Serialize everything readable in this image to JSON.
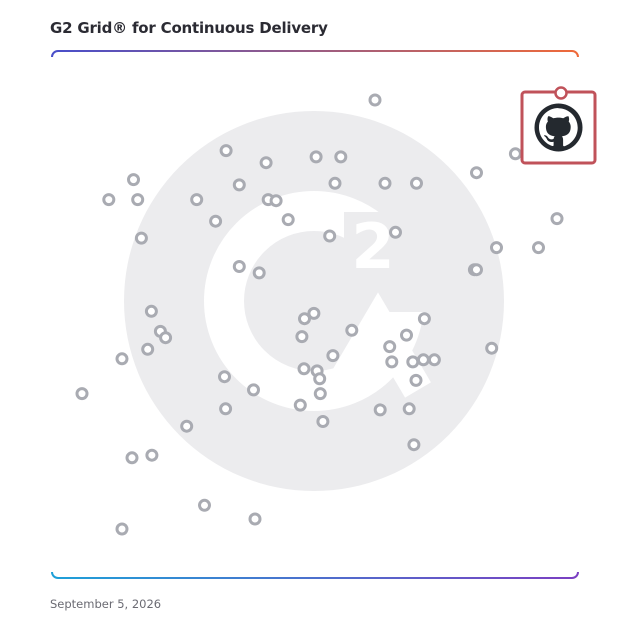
{
  "header": {
    "title": "G2 Grid® for Continuous Delivery"
  },
  "footer": {
    "date": "September 5, 2026"
  },
  "colors": {
    "marker": "#a9abb2",
    "watermark": "#ececee",
    "highlight_border": "#c0525a",
    "grad_top_left": "#4a4fc9",
    "grad_top_right": "#ef6a3a",
    "grad_bottom_left": "#1ea0d8",
    "grad_bottom_right": "#7b3fc2",
    "divider": "#9a74b0"
  },
  "chart_data": {
    "type": "scatter",
    "title": "G2 Grid® for Continuous Delivery",
    "xlabel": "",
    "ylabel": "",
    "xlim": [
      0,
      100
    ],
    "ylim": [
      0,
      100
    ],
    "grid": "quadrants",
    "watermark": "g2-logo",
    "highlight": {
      "name": "GitHub",
      "icon": "github-icon",
      "x": 96,
      "y": 90
    },
    "points": [
      {
        "x": 61.4,
        "y": 90.7
      },
      {
        "x": 33.1,
        "y": 81.1
      },
      {
        "x": 40.7,
        "y": 78.8
      },
      {
        "x": 50.2,
        "y": 79.9
      },
      {
        "x": 54.9,
        "y": 79.9
      },
      {
        "x": 88.1,
        "y": 80.5
      },
      {
        "x": 15.5,
        "y": 75.6
      },
      {
        "x": 35.6,
        "y": 74.6
      },
      {
        "x": 53.8,
        "y": 74.9
      },
      {
        "x": 63.3,
        "y": 74.9
      },
      {
        "x": 69.3,
        "y": 74.9
      },
      {
        "x": 80.7,
        "y": 76.9
      },
      {
        "x": 10.8,
        "y": 71.8
      },
      {
        "x": 16.3,
        "y": 71.8
      },
      {
        "x": 27.5,
        "y": 71.8
      },
      {
        "x": 41.1,
        "y": 71.8
      },
      {
        "x": 42.6,
        "y": 71.6
      },
      {
        "x": 31.1,
        "y": 67.7
      },
      {
        "x": 44.9,
        "y": 68.0
      },
      {
        "x": 96.0,
        "y": 68.2
      },
      {
        "x": 17.0,
        "y": 64.5
      },
      {
        "x": 52.8,
        "y": 64.9
      },
      {
        "x": 65.3,
        "y": 65.6
      },
      {
        "x": 84.5,
        "y": 62.7
      },
      {
        "x": 92.5,
        "y": 62.7
      },
      {
        "x": 35.6,
        "y": 59.1
      },
      {
        "x": 39.4,
        "y": 57.9
      },
      {
        "x": 80.3,
        "y": 58.5
      },
      {
        "x": 80.7,
        "y": 58.5
      },
      {
        "x": 18.9,
        "y": 50.6
      },
      {
        "x": 48.0,
        "y": 49.2
      },
      {
        "x": 49.8,
        "y": 50.2
      },
      {
        "x": 70.8,
        "y": 49.2
      },
      {
        "x": 20.6,
        "y": 46.8
      },
      {
        "x": 21.6,
        "y": 45.6
      },
      {
        "x": 57.0,
        "y": 47.0
      },
      {
        "x": 67.4,
        "y": 46.1
      },
      {
        "x": 18.2,
        "y": 43.4
      },
      {
        "x": 13.3,
        "y": 41.6
      },
      {
        "x": 47.5,
        "y": 45.8
      },
      {
        "x": 64.2,
        "y": 43.9
      },
      {
        "x": 53.4,
        "y": 42.2
      },
      {
        "x": 64.6,
        "y": 41.0
      },
      {
        "x": 68.6,
        "y": 41.0
      },
      {
        "x": 70.6,
        "y": 41.4
      },
      {
        "x": 72.7,
        "y": 41.4
      },
      {
        "x": 83.6,
        "y": 43.6
      },
      {
        "x": 47.9,
        "y": 39.7
      },
      {
        "x": 50.4,
        "y": 39.3
      },
      {
        "x": 50.9,
        "y": 37.8
      },
      {
        "x": 32.8,
        "y": 38.2
      },
      {
        "x": 69.2,
        "y": 37.5
      },
      {
        "x": 5.7,
        "y": 35.0
      },
      {
        "x": 38.3,
        "y": 35.7
      },
      {
        "x": 51.0,
        "y": 35.0
      },
      {
        "x": 33.0,
        "y": 32.1
      },
      {
        "x": 47.2,
        "y": 32.8
      },
      {
        "x": 62.4,
        "y": 31.9
      },
      {
        "x": 67.9,
        "y": 32.1
      },
      {
        "x": 51.5,
        "y": 29.7
      },
      {
        "x": 25.6,
        "y": 28.8
      },
      {
        "x": 68.8,
        "y": 25.3
      },
      {
        "x": 15.2,
        "y": 22.8
      },
      {
        "x": 19.0,
        "y": 23.3
      },
      {
        "x": 29.0,
        "y": 13.8
      },
      {
        "x": 38.6,
        "y": 11.2
      },
      {
        "x": 13.3,
        "y": 9.3
      }
    ]
  }
}
